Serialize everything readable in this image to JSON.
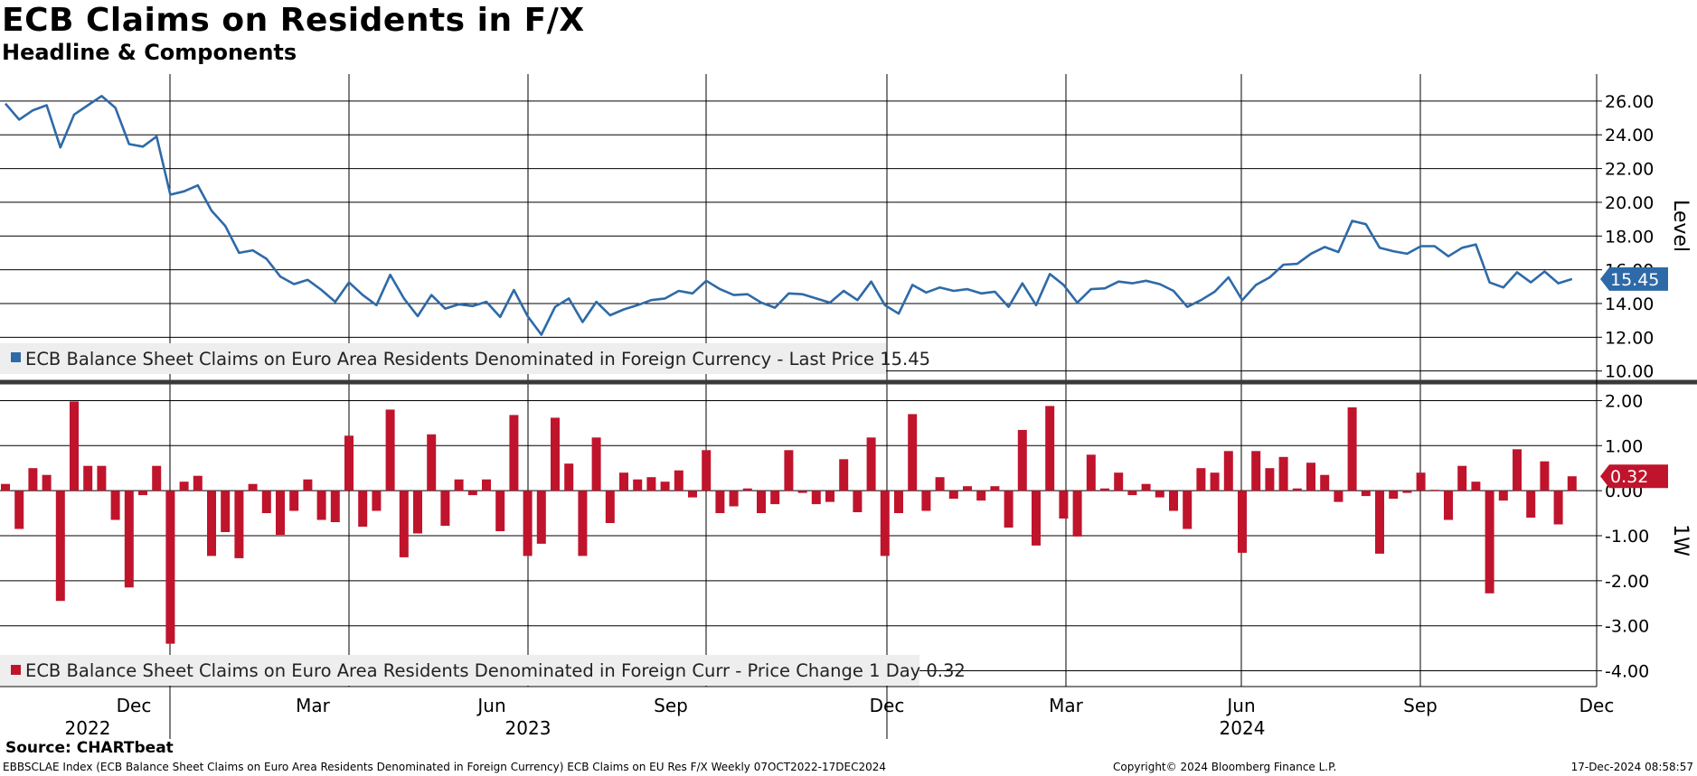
{
  "header": {
    "title": "ECB Claims on Residents in F/X",
    "subtitle": "Headline & Components"
  },
  "colors": {
    "level": "#2e6aa8",
    "change": "#c0142c"
  },
  "chart_data": [
    {
      "type": "line",
      "panel": "top",
      "axis_label": "Level",
      "ylim": [
        9.5,
        27.6
      ],
      "yticks": [
        10,
        12,
        14,
        16,
        18,
        20,
        22,
        24,
        26
      ],
      "ytick_labels": [
        "10.00",
        "12.00",
        "14.00",
        "16.00",
        "18.00",
        "20.00",
        "22.00",
        "24.00",
        "26.00"
      ],
      "last_value_label": "15.45",
      "legend": "ECB Balance Sheet Claims on Euro Area Residents Denominated in Foreign Currency - Last Price 15.45",
      "grid": true,
      "series": [
        {
          "values": [
            25.85,
            24.9,
            25.45,
            25.75,
            23.25,
            25.2,
            25.75,
            26.3,
            25.6,
            23.45,
            23.3,
            23.9,
            20.45,
            20.65,
            21.0,
            19.5,
            18.6,
            17.0,
            17.15,
            16.65,
            15.6,
            15.15,
            15.4,
            14.8,
            14.1,
            15.25,
            14.5,
            13.9,
            15.7,
            14.3,
            13.25,
            14.5,
            13.7,
            13.95,
            13.85,
            14.1,
            13.2,
            14.8,
            13.25,
            12.15,
            13.8,
            14.3,
            12.9,
            14.1,
            13.3,
            13.65,
            13.9,
            14.2,
            14.3,
            14.75,
            14.6,
            15.35,
            14.85,
            14.5,
            14.55,
            14.05,
            13.75,
            14.6,
            14.55,
            14.3,
            14.05,
            14.75,
            14.2,
            15.3,
            13.9,
            13.4,
            15.1,
            14.65,
            14.95,
            14.75,
            14.85,
            14.6,
            14.7,
            13.8,
            15.2,
            13.9,
            15.75,
            15.1,
            14.05,
            14.85,
            14.9,
            15.3,
            15.2,
            15.35,
            15.15,
            14.75,
            13.8,
            14.2,
            14.7,
            15.55,
            14.2,
            15.1,
            15.55,
            16.3,
            16.35,
            16.95,
            17.35,
            17.05,
            18.9,
            18.7,
            17.3,
            17.1,
            16.95,
            17.4,
            17.4,
            16.8,
            17.3,
            17.5,
            15.25,
            14.95,
            15.85,
            15.25,
            15.9,
            15.2,
            15.45
          ]
        }
      ]
    },
    {
      "type": "bar",
      "panel": "bottom",
      "axis_label": "1W",
      "ylim": [
        -4.35,
        2.35
      ],
      "yticks": [
        -4,
        -3,
        -2,
        -1,
        0,
        1,
        2
      ],
      "ytick_labels": [
        "-4.00",
        "-3.00",
        "-2.00",
        "-1.00",
        "0.00",
        "1.00",
        "2.00"
      ],
      "last_value_label": "0.32",
      "legend": "ECB Balance Sheet Claims on Euro Area Residents Denominated in Foreign Curr - Price Change 1 Day 0.32",
      "grid": true,
      "series": [
        {
          "values": [
            0.15,
            -0.85,
            0.5,
            0.35,
            -2.45,
            1.98,
            0.55,
            0.55,
            -0.65,
            -2.15,
            -0.1,
            0.55,
            -3.4,
            0.2,
            0.33,
            -1.45,
            -0.92,
            -1.5,
            0.15,
            -0.5,
            -0.98,
            -0.45,
            0.25,
            -0.65,
            -0.7,
            1.22,
            -0.8,
            -0.45,
            1.8,
            -1.48,
            -0.95,
            1.25,
            -0.78,
            0.25,
            -0.1,
            0.25,
            -0.9,
            1.68,
            -1.45,
            -1.18,
            1.62,
            0.6,
            -1.45,
            1.18,
            -0.72,
            0.4,
            0.25,
            0.3,
            0.2,
            0.45,
            -0.15,
            0.9,
            -0.5,
            -0.35,
            0.05,
            -0.5,
            -0.3,
            0.9,
            -0.05,
            -0.3,
            -0.25,
            0.7,
            -0.48,
            1.18,
            -1.45,
            -0.5,
            1.7,
            -0.45,
            0.3,
            -0.18,
            0.1,
            -0.22,
            0.1,
            -0.82,
            1.35,
            -1.22,
            1.88,
            -0.62,
            -1.02,
            0.8,
            0.05,
            0.4,
            -0.1,
            0.15,
            -0.15,
            -0.45,
            -0.85,
            0.5,
            0.4,
            0.88,
            -1.38,
            0.88,
            0.5,
            0.75,
            0.05,
            0.62,
            0.35,
            -0.25,
            1.85,
            -0.12,
            -1.4,
            -0.18,
            -0.05,
            0.4,
            0.02,
            -0.65,
            0.55,
            0.2,
            -2.28,
            -0.22,
            0.92,
            -0.6,
            0.65,
            -0.75,
            0.32
          ]
        }
      ]
    }
  ],
  "x_axis": {
    "month_labels": [
      "Dec",
      "Mar",
      "Jun",
      "Sep",
      "Dec",
      "Mar",
      "Jun",
      "Sep",
      "Dec"
    ],
    "year_labels": [
      "2022",
      "2023",
      "2024"
    ]
  },
  "footer": {
    "source": "Source: CHARTbeat",
    "description": "EBBSCLAE Index (ECB Balance Sheet Claims on Euro Area Residents Denominated in Foreign Currency) ECB Claims on EU Res F/X  Weekly 07OCT2022-17DEC2024",
    "copyright": "Copyright© 2024 Bloomberg Finance L.P.",
    "timestamp": "17-Dec-2024 08:58:57"
  }
}
